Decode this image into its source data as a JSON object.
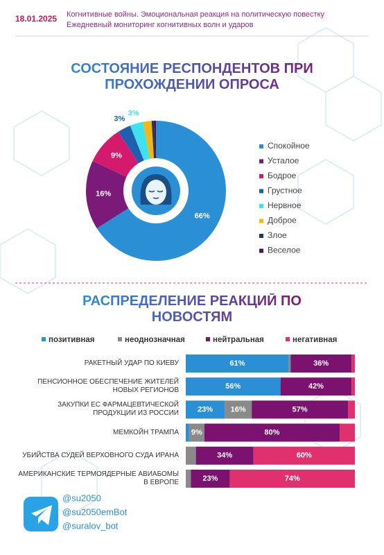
{
  "header": {
    "date": "18.01.2025",
    "line1": "Когнитивные войны. Эмоциональная реакция на политическую повестку",
    "line2": "Ежедневный мониторинг когнитивных волн и ударов"
  },
  "chart_data": [
    {
      "type": "pie",
      "title": "СОСТОЯНИЕ РЕСПОНДЕНТОВ ПРИ ПРОХОЖДЕНИИ ОПРОСА",
      "categories": [
        "Спокойное",
        "Усталое",
        "Бодрое",
        "Грустное",
        "Нервное",
        "Доброе",
        "Злое",
        "Веселое"
      ],
      "values": [
        66,
        16,
        9,
        3,
        3,
        2,
        0.5,
        0.5
      ],
      "value_labels": [
        "66%",
        "16%",
        "9%",
        "3%",
        "3%",
        null,
        null,
        null
      ],
      "colors": [
        "#2b8fd6",
        "#7b1a78",
        "#d41a6c",
        "#1f5fb0",
        "#3de2ec",
        "#f2b51a",
        "#1d3d5c",
        "#4a1a4a"
      ],
      "legend": "right"
    },
    {
      "type": "stacked-bar",
      "title": "РАСПРЕДЕЛЕНИЕ РЕАКЦИЙ ПО НОВОСТЯМ",
      "categories": [
        "РАКЕТНЫЙ УДАР ПО КИЕВУ",
        "ПЕНСИОННОЕ ОБЕСПЕЧЕНИЕ ЖИТЕЛЕЙ НОВЫХ РЕГИОНОВ",
        "ЗАКУПКИ ЕС ФАРМАЦЕВТИЧЕСКОЙ ПРОДУКЦИИ ИЗ РОССИИ",
        "МЕМКОЙН ТРАМПА",
        "УБИЙСТВА СУДЕЙ ВЕРХОВНОГО СУДА ИРАНА",
        "АМЕРИКАНСКИЕ ТЕРМОЯДЕРНЫЕ АВИАБОМЫ В ЕВРОПЕ"
      ],
      "xlim": [
        0,
        100
      ],
      "legend": "top",
      "series": [
        {
          "name": "позитивная",
          "color": "#2b8fd6",
          "values": [
            61,
            56,
            23,
            2,
            0,
            0
          ],
          "value_labels": [
            "61%",
            "56%",
            "23%",
            null,
            null,
            null
          ]
        },
        {
          "name": "неоднозначная",
          "color": "#8a8a8a",
          "values": [
            1,
            0,
            16,
            9,
            6,
            3
          ],
          "value_labels": [
            null,
            null,
            "16%",
            "9%",
            null,
            null
          ]
        },
        {
          "name": "нейтральная",
          "color": "#7b1270",
          "values": [
            36,
            42,
            57,
            80,
            34,
            23
          ],
          "value_labels": [
            "36%",
            "42%",
            "57%",
            "80%",
            "34%",
            "23%"
          ]
        },
        {
          "name": "негативная",
          "color": "#e0306e",
          "values": [
            2,
            2,
            4,
            9,
            60,
            74
          ],
          "value_labels": [
            null,
            null,
            null,
            null,
            "60%",
            "74%"
          ]
        }
      ]
    }
  ],
  "footer": {
    "handles": [
      "@su2050",
      "@su2050emBot",
      "@suralov_bot"
    ]
  }
}
